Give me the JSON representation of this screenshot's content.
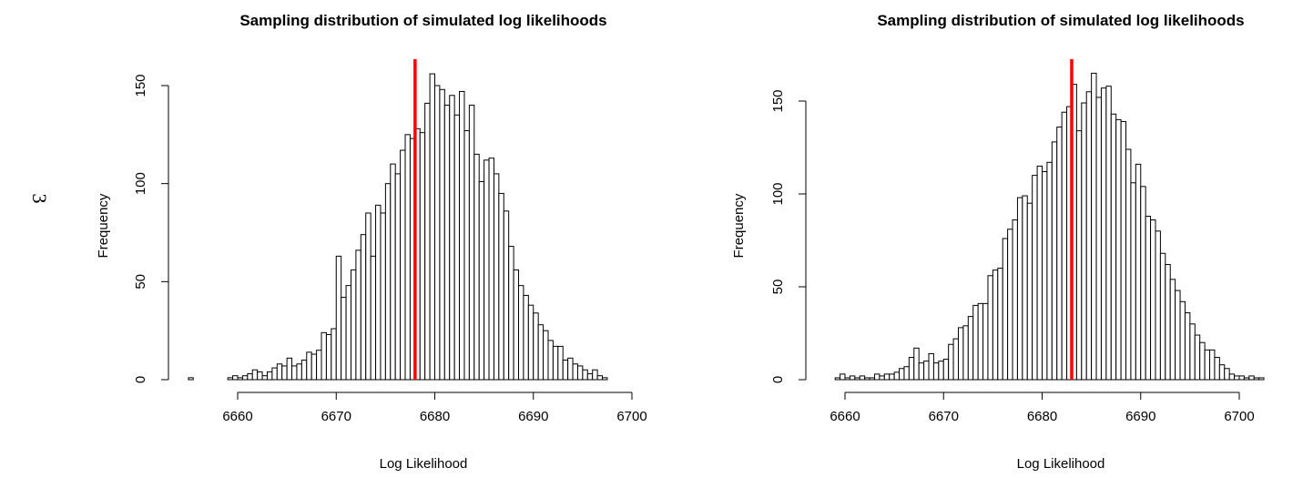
{
  "margin_label": "3",
  "colors": {
    "reference_line": "#ff0000",
    "bar_fill": "#ffffff",
    "bar_stroke": "#000000"
  },
  "chart_data": [
    {
      "type": "bar",
      "title": "Sampling distribution of simulated log likelihoods",
      "xlabel": "Log Likelihood",
      "ylabel": "Frequency",
      "bin_start": 6655,
      "bin_width": 0.5,
      "xlim": [
        6655,
        6704
      ],
      "ylim": [
        0,
        150
      ],
      "x_ticks": [
        6660,
        6670,
        6680,
        6690,
        6700
      ],
      "y_ticks": [
        0,
        50,
        100,
        150
      ],
      "grid": false,
      "reference_line": 6678,
      "values": [
        1,
        0,
        0,
        0,
        0,
        0,
        0,
        0,
        1,
        2,
        1,
        2,
        3,
        5,
        4,
        2,
        4,
        6,
        8,
        7,
        11,
        7,
        8,
        10,
        14,
        13,
        15,
        24,
        23,
        26,
        63,
        42,
        48,
        56,
        66,
        74,
        85,
        63,
        89,
        85,
        100,
        110,
        105,
        117,
        125,
        123,
        128,
        126,
        141,
        156,
        150,
        148,
        140,
        145,
        135,
        147,
        127,
        140,
        115,
        101,
        112,
        113,
        105,
        95,
        86,
        68,
        56,
        48,
        43,
        38,
        34,
        28,
        25,
        20,
        17,
        17,
        10,
        11,
        8,
        7,
        5,
        3,
        5,
        2,
        1
      ],
      "mark_name": "histogram-bar"
    },
    {
      "type": "bar",
      "title": "Sampling distribution of simulated log likelihoods",
      "xlabel": "Log Likelihood",
      "ylabel": "Frequency",
      "bin_start": 6659,
      "bin_width": 0.5,
      "xlim": [
        6659,
        6705
      ],
      "ylim": [
        0,
        160
      ],
      "x_ticks": [
        6660,
        6670,
        6680,
        6690,
        6700
      ],
      "y_ticks": [
        0,
        50,
        100,
        150
      ],
      "grid": false,
      "reference_line": 6683,
      "values": [
        1,
        3,
        1,
        2,
        1,
        2,
        1,
        1,
        3,
        2,
        3,
        3,
        4,
        6,
        7,
        12,
        17,
        9,
        10,
        14,
        9,
        10,
        11,
        19,
        22,
        28,
        29,
        34,
        40,
        41,
        41,
        56,
        59,
        60,
        76,
        81,
        86,
        98,
        99,
        95,
        110,
        115,
        112,
        117,
        128,
        136,
        144,
        147,
        159,
        134,
        149,
        155,
        165,
        152,
        157,
        158,
        143,
        140,
        139,
        124,
        106,
        116,
        104,
        88,
        86,
        80,
        68,
        62,
        54,
        48,
        42,
        36,
        30,
        24,
        20,
        16,
        16,
        12,
        8,
        6,
        3,
        2,
        2,
        1,
        2,
        1,
        1
      ],
      "mark_name": "histogram-bar"
    }
  ]
}
